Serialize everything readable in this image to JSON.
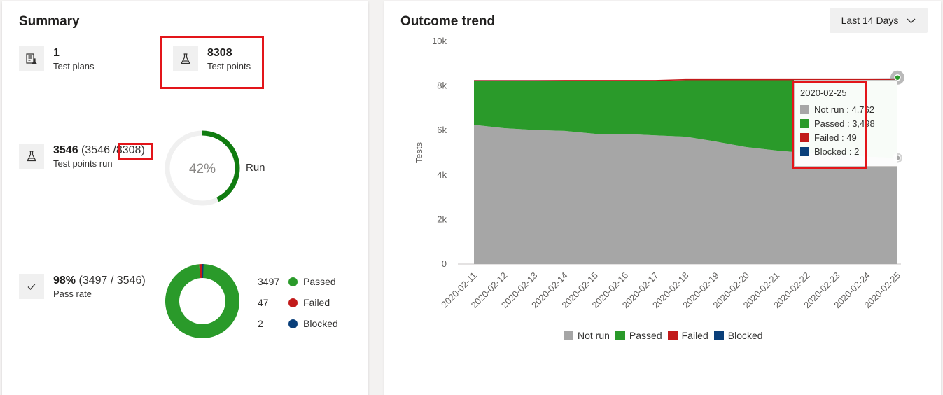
{
  "colors": {
    "not_run": "#a6a6a6",
    "passed": "#2a9a2a",
    "failed": "#c21a1a",
    "blocked": "#0a3f7a",
    "run_ring": "#107c10",
    "highlight": "#e3151a"
  },
  "summary": {
    "title": "Summary",
    "test_plans": {
      "value": "1",
      "label": "Test plans",
      "icon": "test-plan-icon"
    },
    "test_points": {
      "value": "8308",
      "label": "Test points",
      "icon": "flask-icon"
    },
    "test_points_run": {
      "value": "3546",
      "detail_prefix": "(3546 /",
      "detail_total": "8308)",
      "label": "Test points run",
      "icon": "flask-icon",
      "ring_percent_text": "42%",
      "ring_fraction": 0.427,
      "ring_label": "Run"
    },
    "pass_rate": {
      "value": "98%",
      "detail": "(3497 / 3546)",
      "label": "Pass rate",
      "icon": "checkmark-icon",
      "breakdown": [
        {
          "count": "3497",
          "label": "Passed",
          "value": 3497,
          "color": "#2a9a2a"
        },
        {
          "count": "47",
          "label": "Failed",
          "value": 47,
          "color": "#c21a1a"
        },
        {
          "count": "2",
          "label": "Blocked",
          "value": 2,
          "color": "#0a3f7a"
        }
      ]
    }
  },
  "trend": {
    "title": "Outcome trend",
    "range_label": "Last 14 Days",
    "tooltip": {
      "date": "2020-02-25",
      "rows": [
        {
          "text": "Not run : 4,762",
          "color": "#a6a6a6"
        },
        {
          "text": "Passed : 3,498",
          "color": "#2a9a2a"
        },
        {
          "text": "Failed : 49",
          "color": "#c21a1a"
        },
        {
          "text": "Blocked : 2",
          "color": "#0a3f7a"
        }
      ]
    }
  },
  "chart_data": {
    "type": "area",
    "stacked": true,
    "title": "Outcome trend",
    "xlabel": "",
    "ylabel": "Tests",
    "ylim": [
      0,
      10000
    ],
    "yticks": [
      0,
      2000,
      4000,
      6000,
      8000,
      10000
    ],
    "ytick_labels": [
      "0",
      "2k",
      "4k",
      "6k",
      "8k",
      "10k"
    ],
    "grid": false,
    "legend_position": "bottom",
    "categories": [
      "2020-02-11",
      "2020-02-12",
      "2020-02-13",
      "2020-02-14",
      "2020-02-15",
      "2020-02-16",
      "2020-02-17",
      "2020-02-18",
      "2020-02-19",
      "2020-02-20",
      "2020-02-21",
      "2020-02-22",
      "2020-02-23",
      "2020-02-24",
      "2020-02-25"
    ],
    "series": [
      {
        "name": "Not run",
        "color": "#a6a6a6",
        "values": [
          6250,
          6100,
          6020,
          5980,
          5850,
          5840,
          5780,
          5720,
          5500,
          5250,
          5100,
          4980,
          4900,
          4820,
          4762
        ]
      },
      {
        "name": "Passed",
        "color": "#2a9a2a",
        "values": [
          1970,
          2120,
          2200,
          2245,
          2375,
          2385,
          2445,
          2535,
          2755,
          3005,
          3155,
          3275,
          3355,
          3435,
          3498
        ]
      },
      {
        "name": "Failed",
        "color": "#c21a1a",
        "values": [
          40,
          40,
          40,
          40,
          40,
          40,
          40,
          49,
          49,
          49,
          49,
          49,
          49,
          49,
          49
        ]
      },
      {
        "name": "Blocked",
        "color": "#0a3f7a",
        "values": [
          2,
          2,
          2,
          2,
          2,
          2,
          2,
          2,
          2,
          2,
          2,
          2,
          2,
          2,
          2
        ]
      }
    ]
  }
}
